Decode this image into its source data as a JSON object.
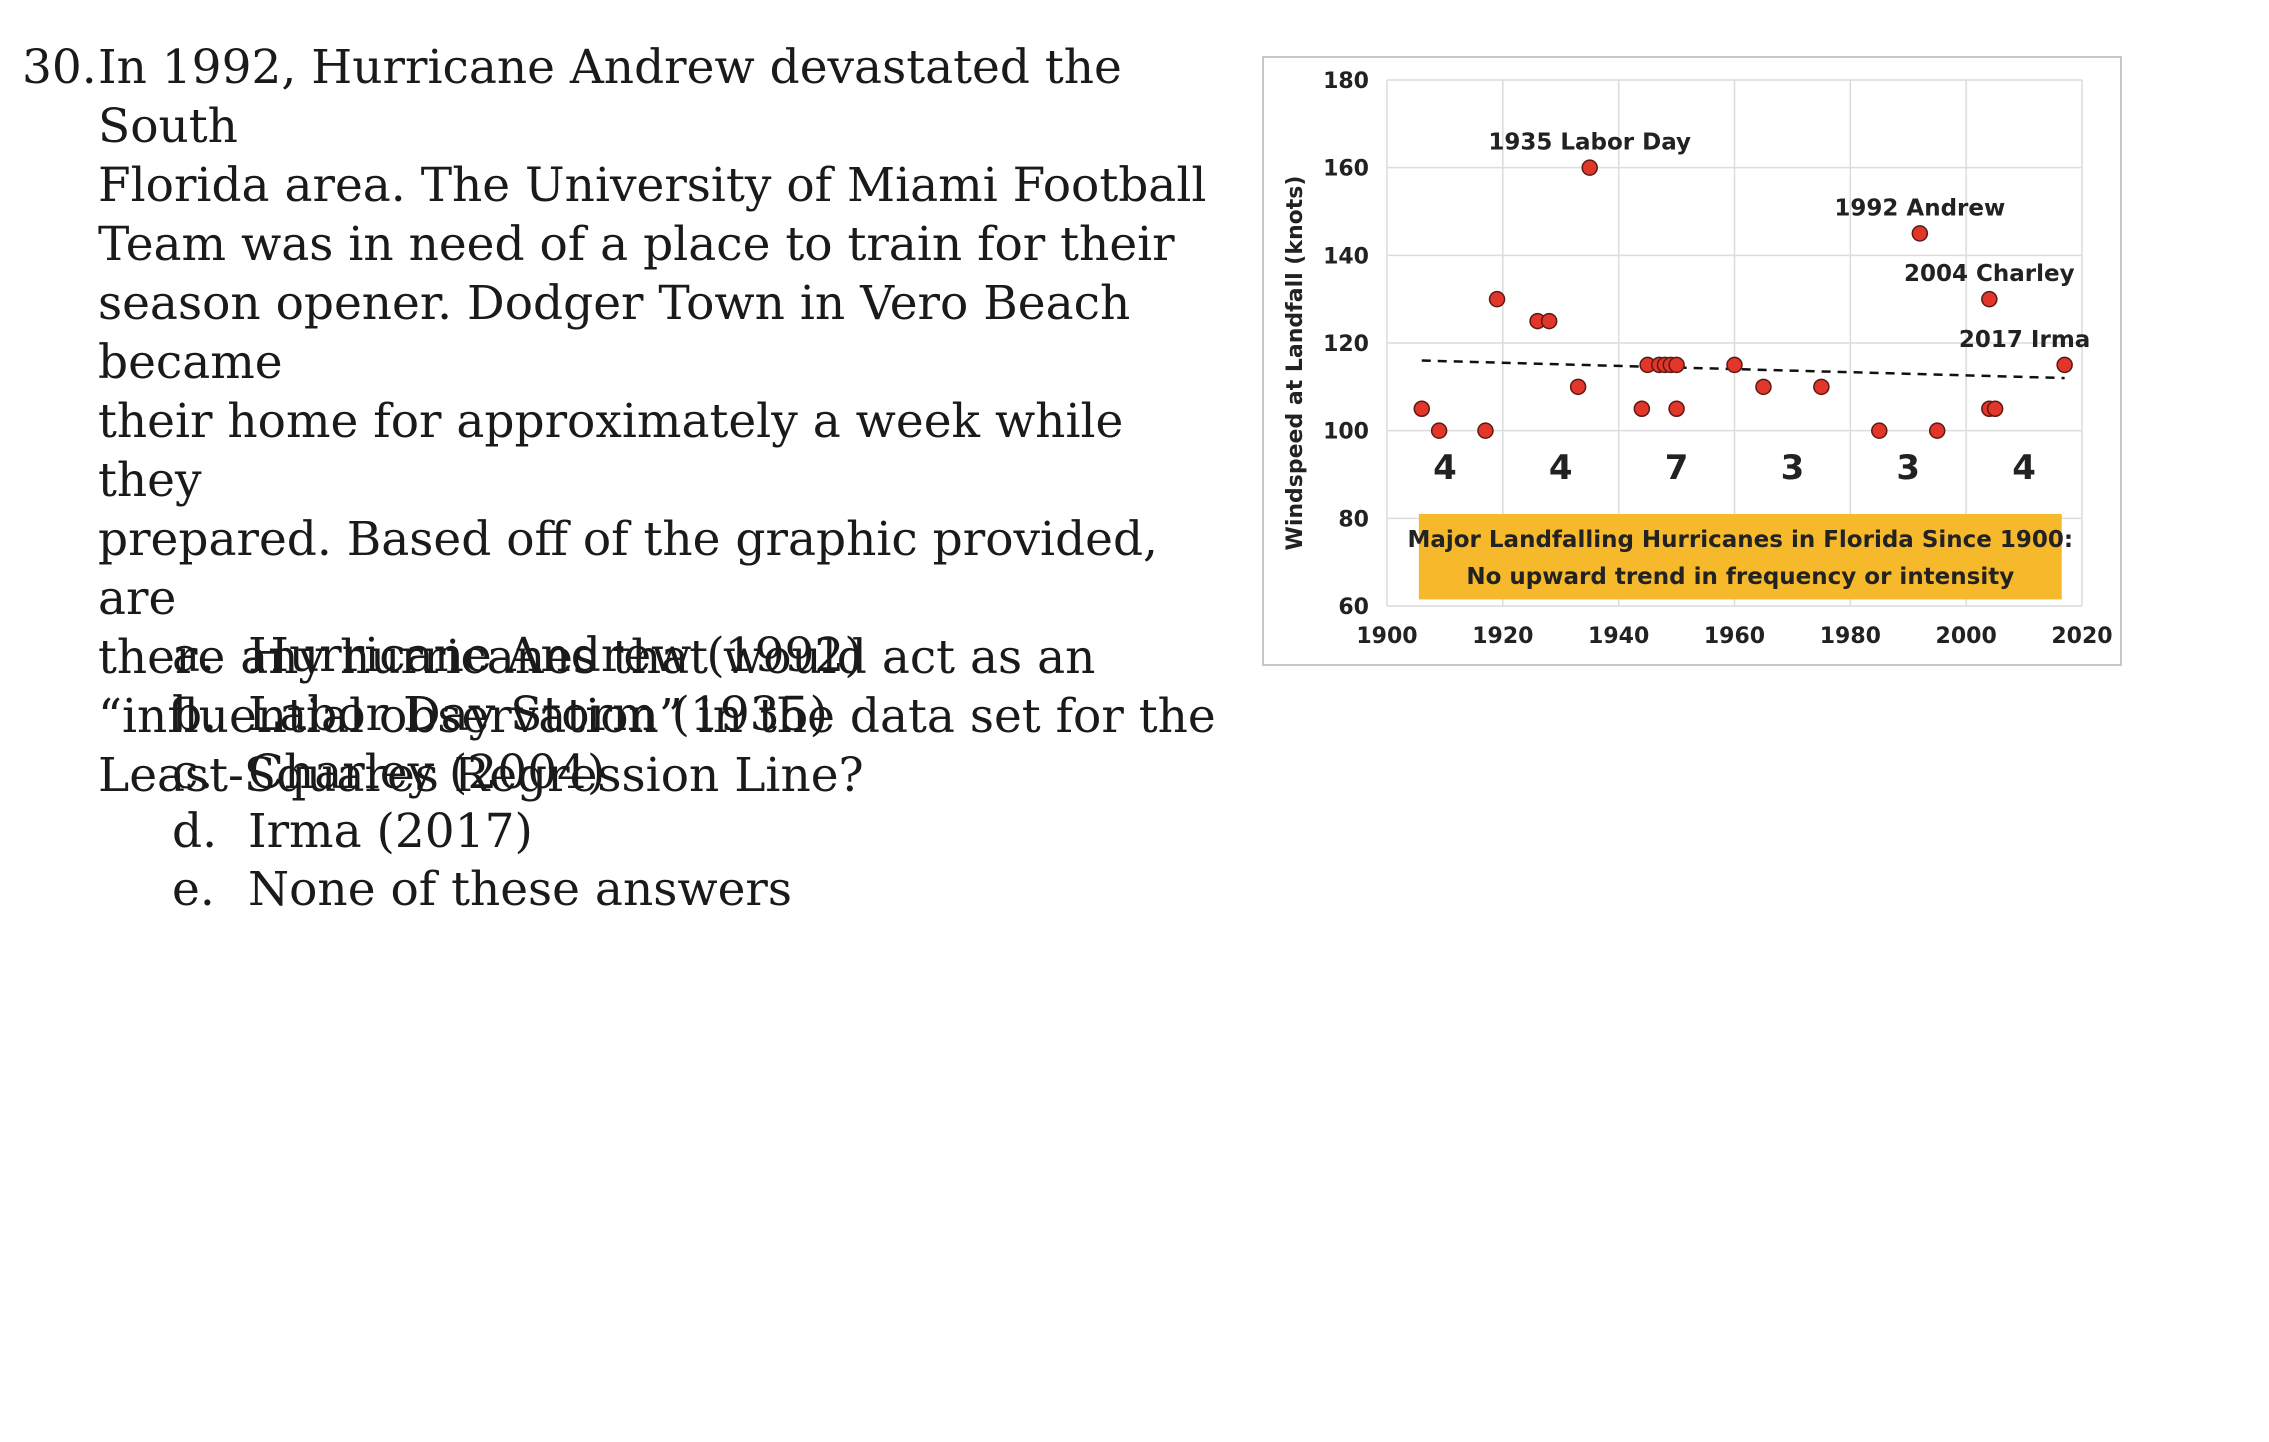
{
  "question": {
    "number": "30.",
    "text": "In 1992, Hurricane Andrew devastated the South\nFlorida area. The University of Miami Football\nTeam was in need of a place to train for their\nseason opener. Dodger Town in Vero Beach became\ntheir home for approximately a week while they\nprepared. Based off of the graphic provided, are\nthere any hurricanes that would act as an\n“influential observation” in the data set for the\nLeast-Squares Regression Line?"
  },
  "choices": [
    {
      "letter": "a.",
      "text": "Hurricane Andrew (1992)"
    },
    {
      "letter": "b.",
      "text": "Labor Day Storm (1935)"
    },
    {
      "letter": "c.",
      "text": "Charley (2004)"
    },
    {
      "letter": "d.",
      "text": "Irma (2017)"
    },
    {
      "letter": "e.",
      "text": "None of these answers"
    }
  ],
  "chart_data": {
    "type": "scatter",
    "title": "",
    "ylabel": "Windspeed at Landfall (knots)",
    "xlabel": "",
    "xlim": [
      1900,
      2020
    ],
    "ylim": [
      60,
      180
    ],
    "xticks": [
      "1900",
      "1920",
      "1940",
      "1960",
      "1980",
      "2000",
      "2020"
    ],
    "yticks": [
      "60",
      "80",
      "100",
      "120",
      "140",
      "160",
      "180"
    ],
    "grid": true,
    "marker_color": "#e2362b",
    "points": [
      {
        "x": 1906,
        "y": 105
      },
      {
        "x": 1909,
        "y": 100
      },
      {
        "x": 1917,
        "y": 100
      },
      {
        "x": 1919,
        "y": 130
      },
      {
        "x": 1926,
        "y": 125
      },
      {
        "x": 1928,
        "y": 125
      },
      {
        "x": 1933,
        "y": 110
      },
      {
        "x": 1935,
        "y": 160
      },
      {
        "x": 1944,
        "y": 105
      },
      {
        "x": 1945,
        "y": 115
      },
      {
        "x": 1947,
        "y": 115
      },
      {
        "x": 1948,
        "y": 115
      },
      {
        "x": 1949,
        "y": 115
      },
      {
        "x": 1950,
        "y": 115
      },
      {
        "x": 1950,
        "y": 105
      },
      {
        "x": 1960,
        "y": 115
      },
      {
        "x": 1965,
        "y": 110
      },
      {
        "x": 1975,
        "y": 110
      },
      {
        "x": 1985,
        "y": 100
      },
      {
        "x": 1992,
        "y": 145
      },
      {
        "x": 1995,
        "y": 100
      },
      {
        "x": 2004,
        "y": 130
      },
      {
        "x": 2004,
        "y": 105
      },
      {
        "x": 2005,
        "y": 105
      },
      {
        "x": 2017,
        "y": 115
      }
    ],
    "trendline": {
      "x": [
        1906,
        2017
      ],
      "y": [
        116,
        112
      ],
      "style": "dashed"
    },
    "annotations": [
      {
        "text": "1935 Labor Day",
        "x": 1935,
        "y": 160
      },
      {
        "text": "1992 Andrew",
        "x": 1992,
        "y": 145
      },
      {
        "text": "2004 Charley",
        "x": 2004,
        "y": 130
      },
      {
        "text": "2017 Irma",
        "x": 2017,
        "y": 115
      }
    ],
    "decade_counts": [
      {
        "range": "1900-1920",
        "count": "4"
      },
      {
        "range": "1920-1940",
        "count": "4"
      },
      {
        "range": "1940-1960",
        "count": "7"
      },
      {
        "range": "1960-1980",
        "count": "3"
      },
      {
        "range": "1980-2000",
        "count": "3"
      },
      {
        "range": "2000-2020",
        "count": "4"
      }
    ],
    "caption": {
      "lines": [
        "Major Landfalling Hurricanes in Florida Since 1900:",
        "No upward trend in frequency or intensity"
      ],
      "background": "#f6b92b"
    }
  }
}
